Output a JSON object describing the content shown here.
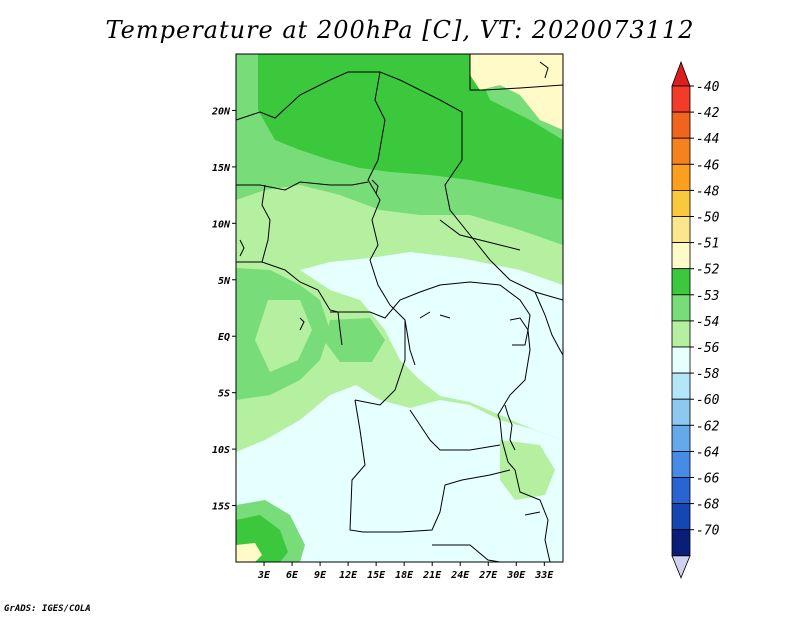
{
  "title": "Temperature at 200hPa [C], VT: 2020073112",
  "footer": "GrADS: IGES/COLA",
  "map": {
    "lon_range": [
      0,
      35
    ],
    "lat_range": [
      -20,
      25
    ],
    "lat_labels": [
      "20N",
      "15N",
      "10N",
      "5N",
      "EQ",
      "5S",
      "10S",
      "15S"
    ],
    "lat_values": [
      20,
      15,
      10,
      5,
      0,
      -5,
      -10,
      -15
    ],
    "lon_labels": [
      "3E",
      "6E",
      "9E",
      "12E",
      "15E",
      "18E",
      "21E",
      "24E",
      "27E",
      "30E",
      "33E"
    ],
    "lon_values": [
      3,
      6,
      9,
      12,
      15,
      18,
      21,
      24,
      27,
      30,
      33
    ]
  },
  "colorbar": {
    "labels": [
      "-40",
      "-42",
      "-44",
      "-46",
      "-48",
      "-50",
      "-51",
      "-52",
      "-53",
      "-54",
      "-56",
      "-58",
      "-60",
      "-62",
      "-64",
      "-66",
      "-68",
      "-70"
    ],
    "colors": [
      "#f03c28",
      "#f0641e",
      "#f5821e",
      "#faa01e",
      "#fac83c",
      "#fae68c",
      "#fffac8",
      "#3cc83c",
      "#78dc78",
      "#b4f0a0",
      "#e6ffff",
      "#b4e6fa",
      "#8cc8f0",
      "#64aaeb",
      "#468ce6",
      "#2864d2",
      "#1446b4",
      "#0a1e78"
    ],
    "top_arrow_color": "#dc1e1e",
    "bottom_arrow_color": "#d2d2f0"
  },
  "colors": {
    "dark_green": "#3cc83c",
    "mid_green": "#78dc78",
    "light_green": "#b4f0a0",
    "pale_cyan": "#e6ffff",
    "pale_yellow": "#fffac8"
  }
}
